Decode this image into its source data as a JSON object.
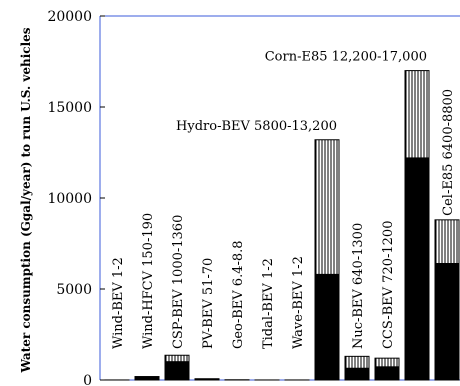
{
  "chart_data": {
    "type": "bar",
    "stacked": true,
    "ylabel": "Water consumption (Ggal/year) to run U.S. vehicles",
    "ylim": [
      0,
      20000
    ],
    "yticks": [
      0,
      5000,
      10000,
      15000,
      20000
    ],
    "categories": [
      "Wind-BEV 1-2",
      "Wind-HFCV 150-190",
      "CSP-BEV 1000-1360",
      "PV-BEV 51-70",
      "Geo-BEV 6.4-8.8",
      "Tidal-BEV 1-2",
      "Wave-BEV 1-2",
      "Hydro-BEV 5800-13,200",
      "Nuc-BEV 640-1300",
      "CCS-BEV 720-1200",
      "Corn-E85 12,200-17,000",
      "Cel-E85 6400-8800"
    ],
    "label_placement": [
      "vertical",
      "vertical",
      "vertical",
      "vertical",
      "vertical",
      "vertical",
      "vertical",
      "horizontal",
      "vertical",
      "vertical",
      "horizontal",
      "vertical"
    ],
    "low": [
      1,
      150,
      1000,
      51,
      6.4,
      1,
      1,
      5800,
      640,
      720,
      12200,
      6400
    ],
    "high": [
      2,
      190,
      1360,
      70,
      8.8,
      2,
      2,
      13200,
      1300,
      1200,
      17000,
      8800
    ],
    "grid": false,
    "colors": {
      "low_fill": "#000000",
      "range_fill": "hatched",
      "axis": "#3b5bdb"
    }
  }
}
